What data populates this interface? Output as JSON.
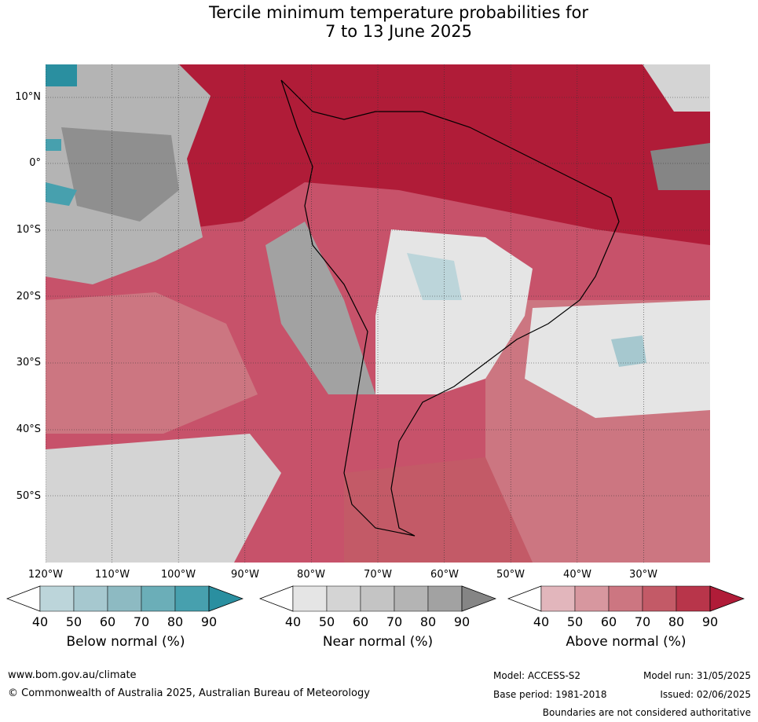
{
  "title": {
    "line1": "Tercile minimum temperature probabilities for",
    "line2": "7 to 13 June 2025"
  },
  "map": {
    "lat_labels": [
      "10°N",
      "0°",
      "10°S",
      "20°S",
      "30°S",
      "40°S",
      "50°S"
    ],
    "lon_labels": [
      "120°W",
      "110°W",
      "100°W",
      "90°W",
      "80°W",
      "70°W",
      "60°W",
      "50°W",
      "40°W",
      "30°W"
    ],
    "lat_range": [
      -60,
      15
    ],
    "lon_range": [
      -120,
      -20
    ],
    "grid": true
  },
  "legends": [
    {
      "title": "Below normal (%)",
      "ticks": [
        "40",
        "50",
        "60",
        "70",
        "80",
        "90"
      ],
      "colors": [
        "#ffffff",
        "#bcd5da",
        "#a6c8cf",
        "#8dbac2",
        "#6baeb8",
        "#47a0ae",
        "#2a8fa0"
      ]
    },
    {
      "title": "Near normal (%)",
      "ticks": [
        "40",
        "50",
        "60",
        "70",
        "80",
        "90"
      ],
      "colors": [
        "#ffffff",
        "#e5e5e5",
        "#d4d4d4",
        "#c4c4c4",
        "#b4b4b4",
        "#a2a2a2",
        "#858585"
      ]
    },
    {
      "title": "Above normal (%)",
      "ticks": [
        "40",
        "50",
        "60",
        "70",
        "80",
        "90"
      ],
      "colors": [
        "#ffffff",
        "#e2b6bc",
        "#d7979f",
        "#cc7681",
        "#c35a67",
        "#b8354a",
        "#b01c38"
      ]
    }
  ],
  "footer": {
    "website": "www.bom.gov.au/climate",
    "copyright": "© Commonwealth of Australia 2025, Australian Bureau of Meteorology",
    "model": "Model: ACCESS-S2",
    "base_period": "Base period: 1981-2018",
    "model_run": "Model run: 31/05/2025",
    "issued": "Issued: 02/06/2025",
    "disclaimer": "Boundaries are not considered authoritative"
  }
}
